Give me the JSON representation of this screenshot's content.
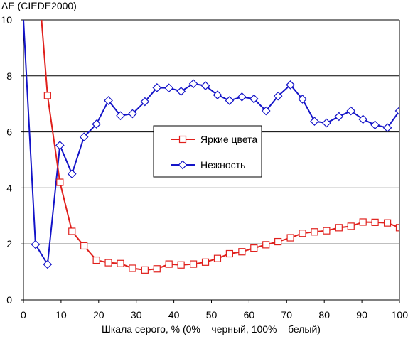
{
  "chart_data": {
    "type": "line",
    "title": "",
    "ylabel": "ΔE (CIEDE2000)",
    "xlabel": "Шкала серого, % (0% – черный, 100% – белый)",
    "xlim": [
      0,
      100
    ],
    "ylim": [
      0,
      10
    ],
    "x_ticks": [
      0,
      10,
      20,
      30,
      40,
      50,
      60,
      70,
      80,
      90,
      100
    ],
    "y_ticks": [
      0,
      2,
      4,
      6,
      8,
      10
    ],
    "grid": "horizontal",
    "legend_position": "center-right",
    "series": [
      {
        "name": "Яркие цвета",
        "color": "#e0201c",
        "marker": "square",
        "x": [
          4.8,
          6.4,
          9.7,
          12.9,
          16.1,
          19.4,
          22.6,
          25.8,
          29.0,
          32.3,
          35.5,
          38.7,
          41.9,
          45.2,
          48.4,
          51.6,
          54.8,
          58.1,
          61.3,
          64.5,
          67.7,
          71.0,
          74.2,
          77.4,
          80.6,
          83.9,
          87.1,
          90.3,
          93.5,
          96.8,
          100
        ],
        "y": [
          10.0,
          7.3,
          4.2,
          2.45,
          1.93,
          1.42,
          1.33,
          1.3,
          1.13,
          1.07,
          1.11,
          1.28,
          1.25,
          1.28,
          1.35,
          1.48,
          1.65,
          1.72,
          1.85,
          1.97,
          2.08,
          2.22,
          2.38,
          2.43,
          2.47,
          2.58,
          2.63,
          2.78,
          2.77,
          2.75,
          2.58
        ]
      },
      {
        "name": "Нежность",
        "color": "#1414c8",
        "marker": "diamond",
        "x": [
          0,
          3.2,
          6.4,
          9.7,
          12.9,
          16.1,
          19.4,
          22.6,
          25.8,
          29.0,
          32.3,
          35.5,
          38.7,
          41.9,
          45.2,
          48.4,
          51.6,
          54.8,
          58.1,
          61.3,
          64.5,
          67.7,
          71.0,
          74.2,
          77.4,
          80.6,
          83.9,
          87.1,
          90.3,
          93.5,
          96.8,
          100
        ],
        "y": [
          10.0,
          1.98,
          1.27,
          5.52,
          4.5,
          5.82,
          6.28,
          7.12,
          6.58,
          6.65,
          7.08,
          7.58,
          7.57,
          7.45,
          7.72,
          7.65,
          7.32,
          7.12,
          7.25,
          7.18,
          6.75,
          7.28,
          7.68,
          7.17,
          6.38,
          6.32,
          6.55,
          6.75,
          6.45,
          6.25,
          6.15,
          6.75
        ]
      }
    ]
  }
}
